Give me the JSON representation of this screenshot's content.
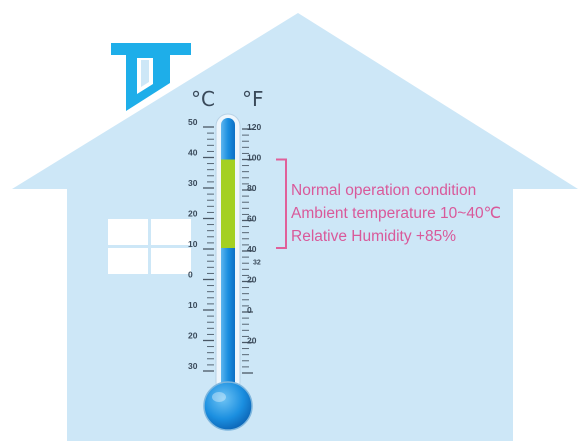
{
  "scale": {
    "celsius_unit": "°C",
    "fahrenheit_unit": "°F",
    "celsius_labels": [
      "50",
      "40",
      "30",
      "20",
      "10",
      "0",
      "10",
      "20",
      "30"
    ],
    "fahrenheit_labels": [
      "120",
      "100",
      "80",
      "60",
      "40",
      "32",
      "20",
      "0",
      "20"
    ],
    "normal_band_celsius": [
      10,
      40
    ]
  },
  "annotation": {
    "line1": "Normal operation condition",
    "line2": "Ambient temperature 10~40℃",
    "line3": "Relative Humidity  +85%"
  },
  "colors": {
    "house": "#cde7f7",
    "chimney": "#1eaee9",
    "tube_blue": "#1a8fde",
    "normal_band": "#a4d022",
    "bracket": "#e0609a",
    "annotation_text": "#d9599a"
  }
}
